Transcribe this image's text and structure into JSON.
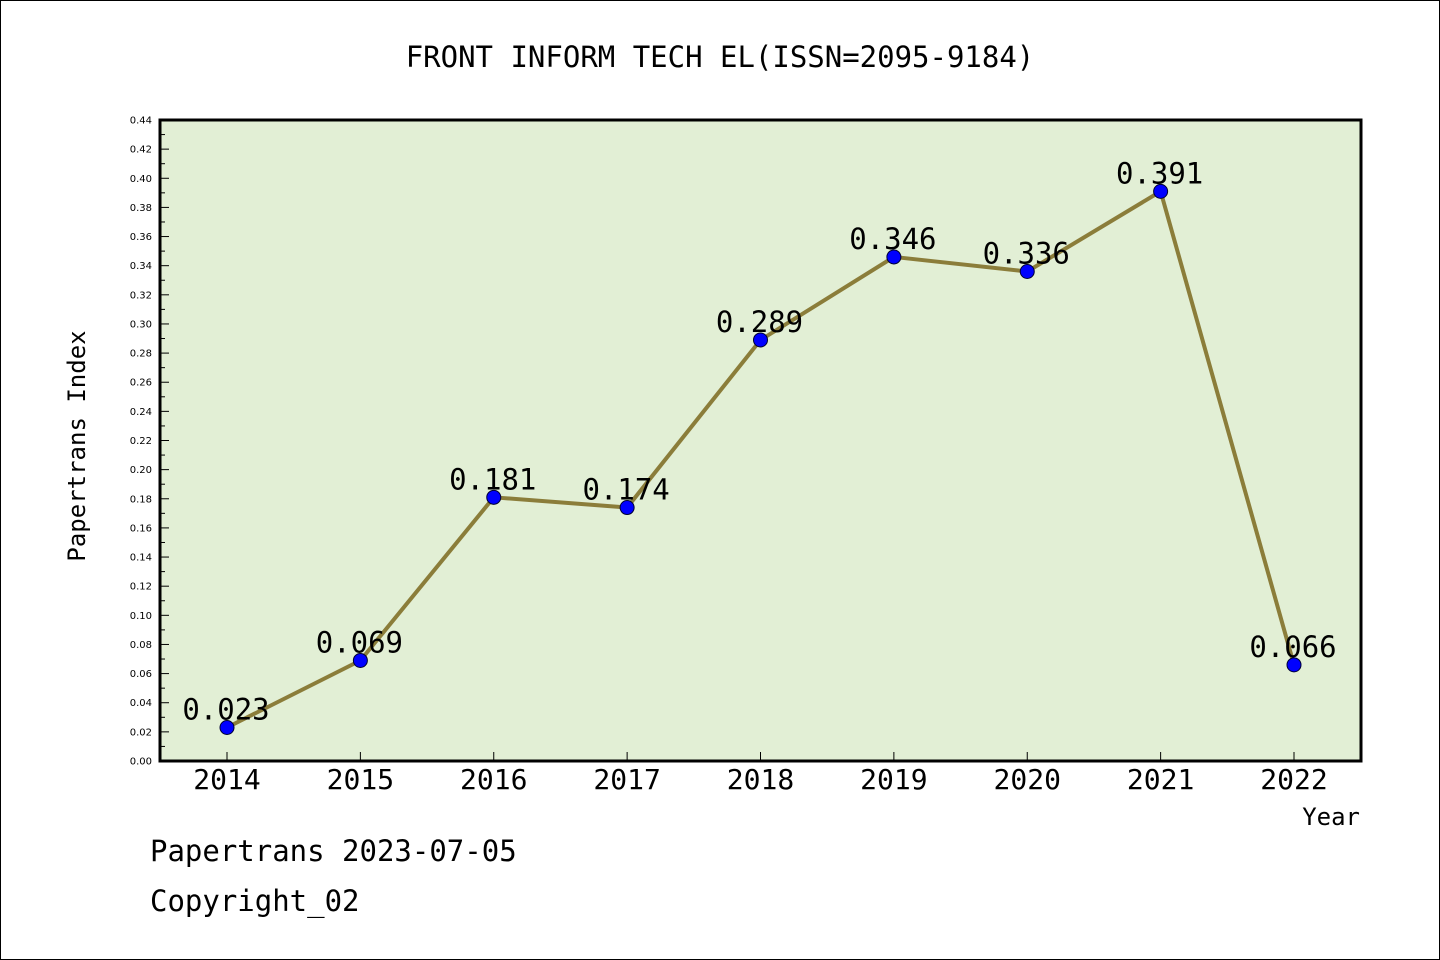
{
  "chart_data": {
    "type": "line",
    "title": "FRONT INFORM TECH EL(ISSN=2095-9184)",
    "xlabel": "Year",
    "ylabel": "Papertrans Index",
    "categories": [
      "2014",
      "2015",
      "2016",
      "2017",
      "2018",
      "2019",
      "2020",
      "2021",
      "2022"
    ],
    "values": [
      0.023,
      0.069,
      0.181,
      0.174,
      0.289,
      0.346,
      0.336,
      0.391,
      0.066
    ],
    "data_labels": [
      "0.023",
      "0.069",
      "0.181",
      "0.174",
      "0.289",
      "0.346",
      "0.336",
      "0.391",
      "0.066"
    ],
    "ylim": [
      0,
      0.44
    ],
    "y_ticks": [
      "0.00",
      "0.02",
      "0.04",
      "0.06",
      "0.08",
      "0.10",
      "0.12",
      "0.14",
      "0.16",
      "0.18",
      "0.20",
      "0.22",
      "0.24",
      "0.26",
      "0.28",
      "0.30",
      "0.32",
      "0.34",
      "0.36",
      "0.38",
      "0.40",
      "0.42",
      "0.44"
    ],
    "grid": false,
    "colors": {
      "line": "#8b7d3a",
      "marker": "#0000ff",
      "plot_background": "#e2efd5"
    }
  },
  "footer": {
    "line1": "Papertrans 2023-07-05",
    "line2": "Copyright_02"
  }
}
